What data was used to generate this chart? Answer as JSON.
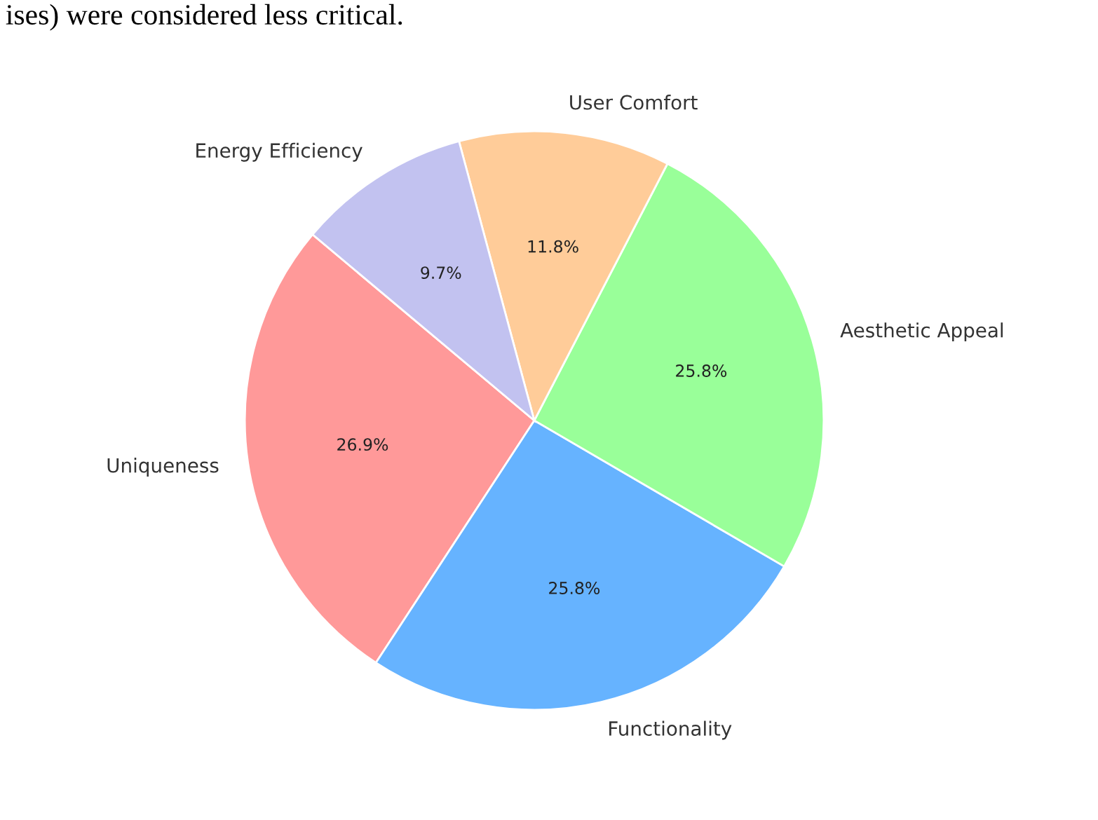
{
  "chart_data": {
    "type": "pie",
    "categories": [
      "Uniqueness",
      "Functionality",
      "Aesthetic Appeal",
      "User Comfort",
      "Energy Efficiency"
    ],
    "values": [
      26.9,
      25.8,
      25.8,
      11.8,
      9.7
    ],
    "colors": [
      "#ff9999",
      "#66b3ff",
      "#99ff99",
      "#ffcc99",
      "#c2c2f0"
    ],
    "value_labels": [
      "26.9%",
      "25.8%",
      "25.8%",
      "11.8%",
      "9.7%"
    ],
    "annotations": [
      "ises) were considered less critical."
    ]
  }
}
